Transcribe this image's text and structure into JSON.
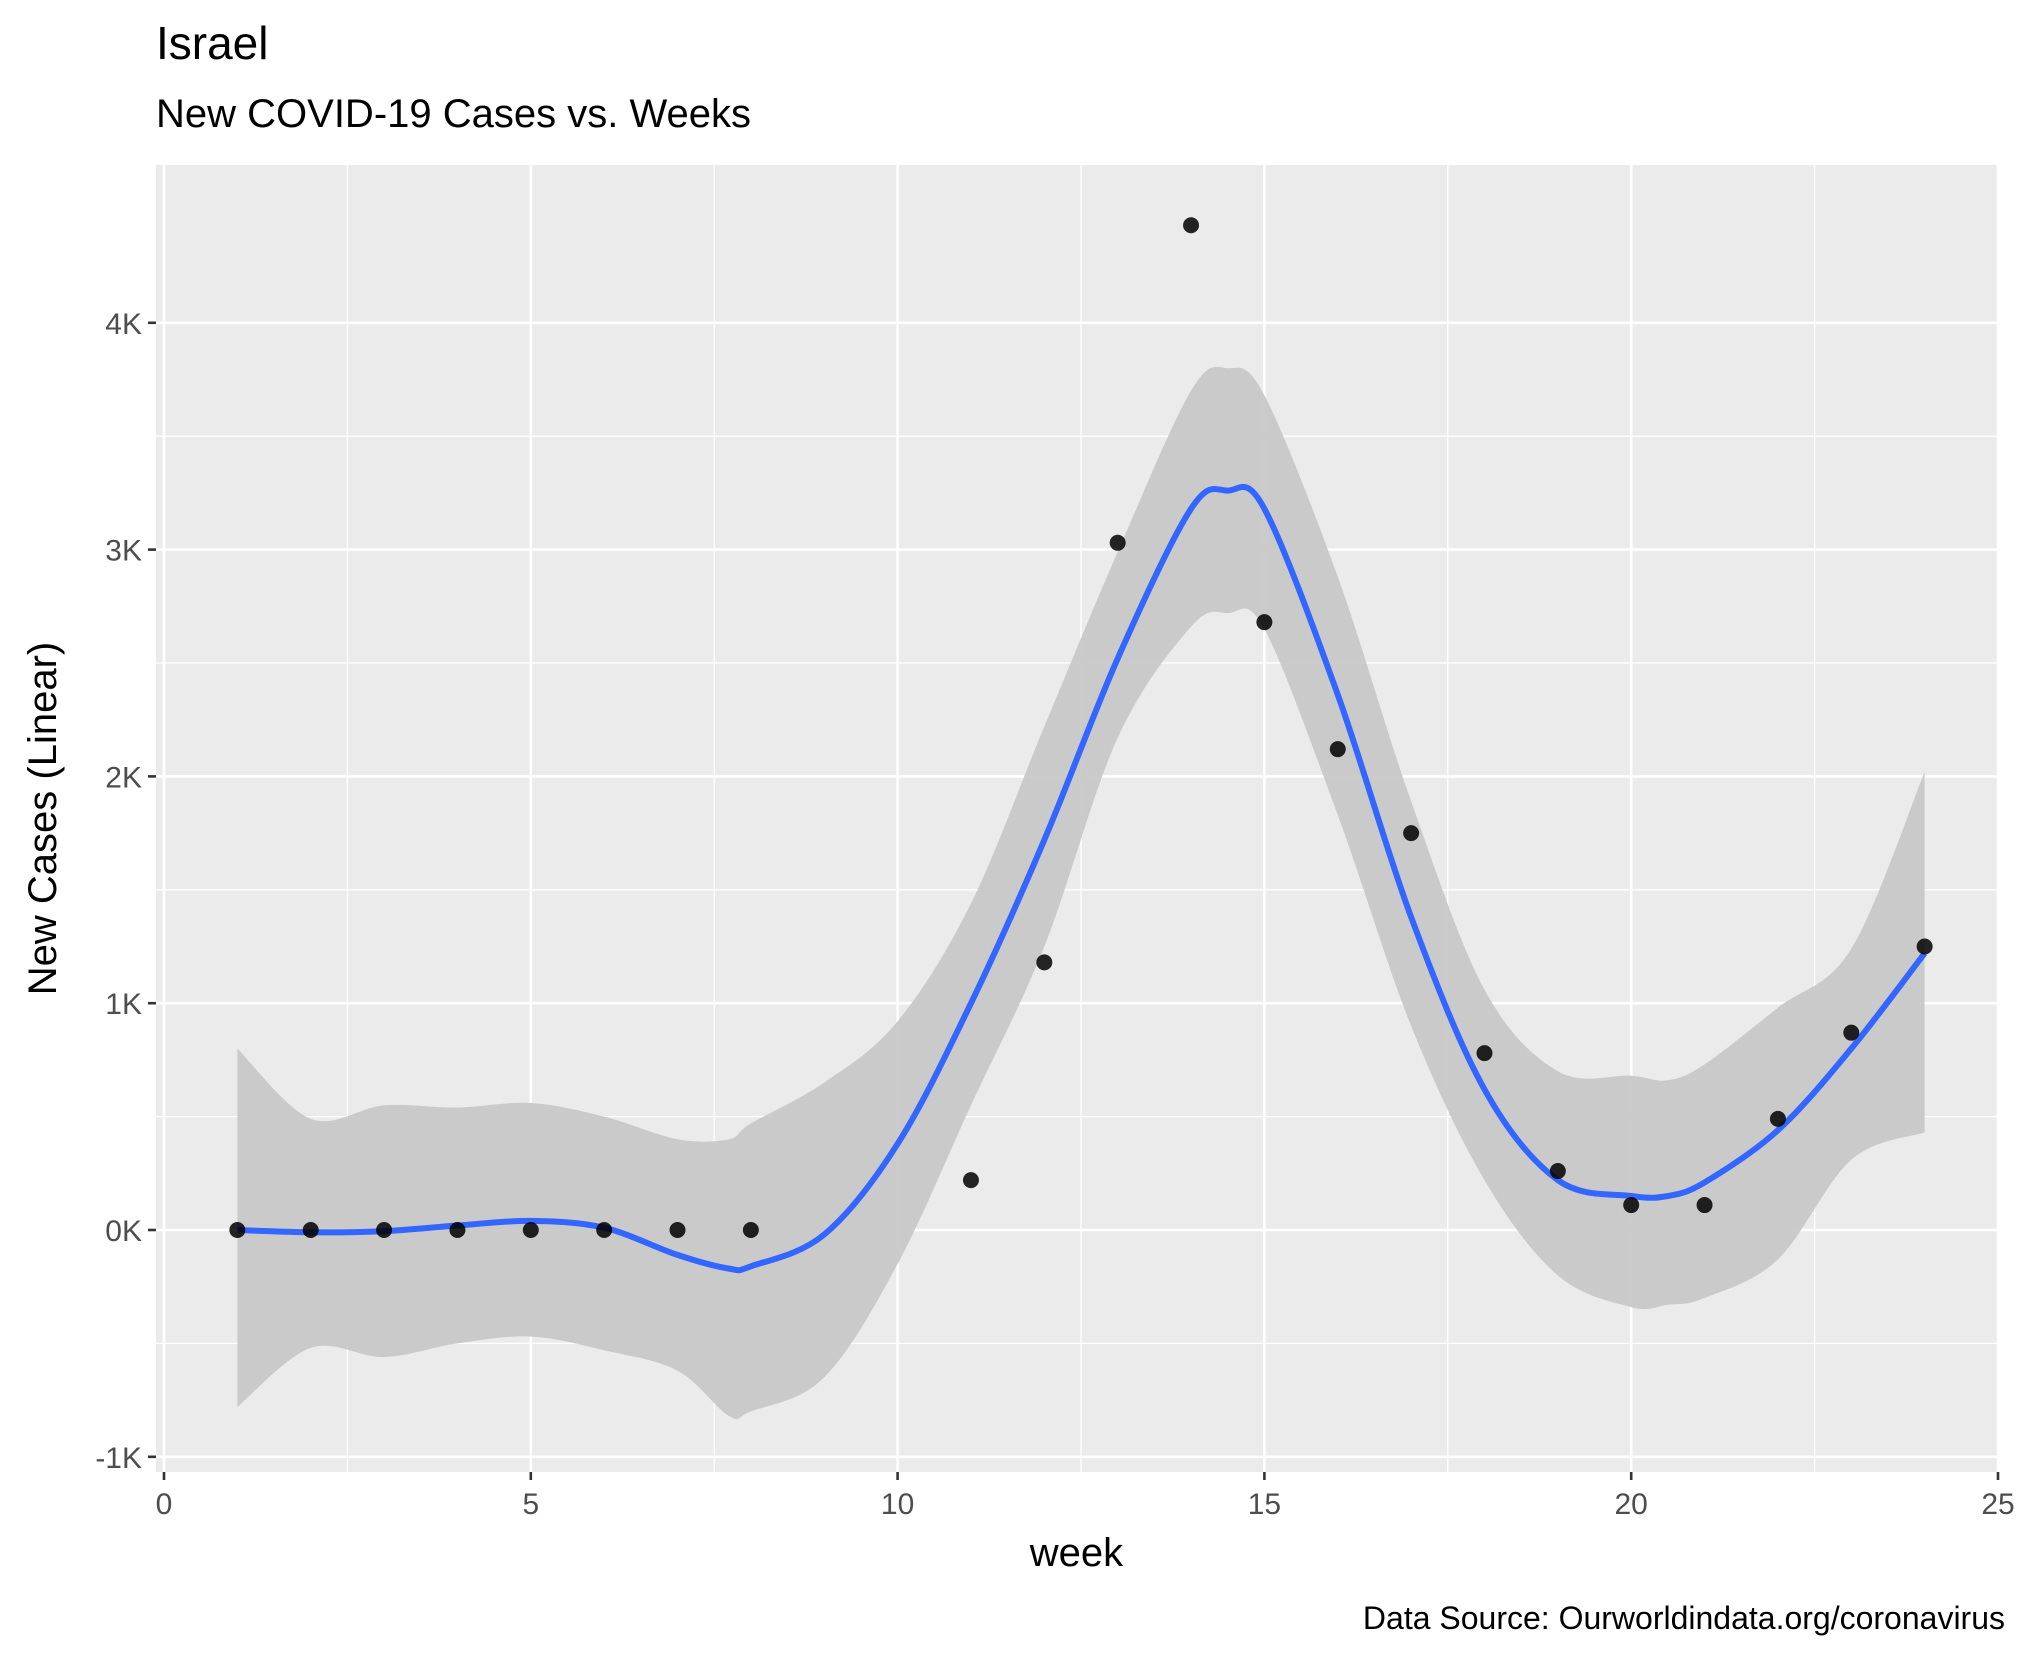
{
  "chart_data": {
    "type": "scatter",
    "title": "Israel",
    "subtitle": "New COVID-19 Cases vs. Weeks",
    "caption": "Data Source: Ourworldindata.org/coronavirus",
    "xlabel": "week",
    "ylabel": "New Cases (Linear)",
    "xlim": [
      0,
      25
    ],
    "ylim": [
      -1000,
      4500
    ],
    "x_ticks": [
      0,
      5,
      10,
      15,
      20,
      25
    ],
    "x_tick_labels": [
      "0",
      "5",
      "10",
      "15",
      "20",
      "25"
    ],
    "y_ticks": [
      -1000,
      0,
      1000,
      2000,
      3000,
      4000
    ],
    "y_tick_labels": [
      "-1K",
      "0K",
      "1K",
      "2K",
      "3K",
      "4K"
    ],
    "grid": true,
    "colors": {
      "panel": "#ebebeb",
      "grid": "#ffffff",
      "points": "#000000",
      "smooth_line": "#3366ff",
      "confidence_band": "#c8c8c8"
    },
    "points": [
      {
        "x": 1,
        "y": 0
      },
      {
        "x": 2,
        "y": 0
      },
      {
        "x": 3,
        "y": 0
      },
      {
        "x": 4,
        "y": 0
      },
      {
        "x": 5,
        "y": 0
      },
      {
        "x": 6,
        "y": 0
      },
      {
        "x": 7,
        "y": 0
      },
      {
        "x": 8,
        "y": 0
      },
      {
        "x": 11,
        "y": 220
      },
      {
        "x": 12,
        "y": 1180
      },
      {
        "x": 13,
        "y": 3030
      },
      {
        "x": 14,
        "y": 4430
      },
      {
        "x": 15,
        "y": 2680
      },
      {
        "x": 16,
        "y": 2120
      },
      {
        "x": 17,
        "y": 1750
      },
      {
        "x": 18,
        "y": 780
      },
      {
        "x": 19,
        "y": 260
      },
      {
        "x": 20,
        "y": 110
      },
      {
        "x": 21,
        "y": 110
      },
      {
        "x": 22,
        "y": 490
      },
      {
        "x": 23,
        "y": 870
      },
      {
        "x": 24,
        "y": 1250
      }
    ],
    "smooth": {
      "x": [
        1,
        2,
        3,
        4,
        5,
        6,
        7,
        7.7,
        8,
        9,
        10,
        11,
        12,
        13,
        14,
        14.5,
        15,
        16,
        17,
        18,
        19,
        20,
        20.5,
        21,
        22,
        23,
        24
      ],
      "y": [
        0,
        -10,
        -5,
        20,
        40,
        10,
        -110,
        -170,
        -160,
        -20,
        380,
        1000,
        1720,
        2520,
        3180,
        3260,
        3180,
        2360,
        1380,
        620,
        220,
        150,
        150,
        210,
        440,
        800,
        1220
      ],
      "lower": [
        -780,
        -520,
        -560,
        -500,
        -470,
        -530,
        -620,
        -820,
        -800,
        -650,
        -150,
        550,
        1250,
        2170,
        2660,
        2720,
        2650,
        1830,
        900,
        220,
        -200,
        -340,
        -330,
        -300,
        -130,
        310,
        430
      ],
      "upper": [
        800,
        490,
        550,
        540,
        560,
        500,
        400,
        400,
        470,
        650,
        920,
        1440,
        2220,
        2990,
        3700,
        3800,
        3680,
        2880,
        1890,
        1060,
        700,
        680,
        660,
        730,
        980,
        1240,
        2020
      ]
    }
  }
}
